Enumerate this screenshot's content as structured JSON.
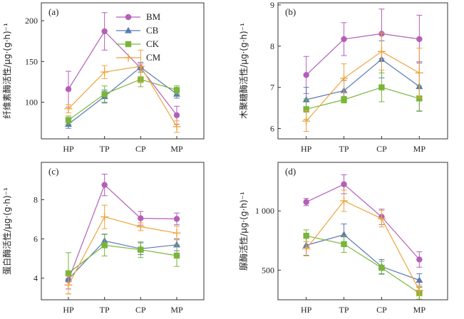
{
  "categories": [
    "HP",
    "TP",
    "CP",
    "MP"
  ],
  "legend": [
    {
      "name": "BM",
      "color": "#b35fb8",
      "marker": "circle"
    },
    {
      "name": "CB",
      "color": "#5b79b4",
      "marker": "triangle"
    },
    {
      "name": "CK",
      "color": "#7ab53a",
      "marker": "square"
    },
    {
      "name": "CM",
      "color": "#f0a33c",
      "marker": "plus"
    }
  ],
  "chart_data": [
    {
      "type": "line",
      "panel_label": "(a)",
      "ylabel": "纤维素酶活性/μg·(g·h)⁻¹",
      "categories": [
        "HP",
        "TP",
        "CP",
        "MP"
      ],
      "ylim": [
        55,
        222
      ],
      "yticks": [
        100,
        150,
        200
      ],
      "legend_position": "top-center",
      "series": [
        {
          "name": "BM",
          "values": [
            116,
            187,
            142,
            84
          ],
          "errors": [
            22,
            23,
            5,
            11
          ]
        },
        {
          "name": "CB",
          "values": [
            73,
            107,
            143,
            110
          ],
          "errors": [
            5,
            8,
            6,
            5
          ]
        },
        {
          "name": "CK",
          "values": [
            78,
            110,
            128,
            115
          ],
          "errors": [
            5,
            10,
            9,
            5
          ]
        },
        {
          "name": "CM",
          "values": [
            92,
            137,
            144,
            70
          ],
          "errors": [
            5,
            8,
            20,
            7
          ]
        }
      ]
    },
    {
      "type": "line",
      "panel_label": "(b)",
      "ylabel": "木聚糖酶活性/μg·(g·h)⁻¹",
      "categories": [
        "HP",
        "TP",
        "CP",
        "MP"
      ],
      "ylim": [
        5.75,
        9.05
      ],
      "yticks": [
        6,
        7,
        8,
        9
      ],
      "series": [
        {
          "name": "BM",
          "values": [
            7.3,
            8.17,
            8.3,
            8.17
          ],
          "errors": [
            0.45,
            0.4,
            0.6,
            0.58
          ]
        },
        {
          "name": "CB",
          "values": [
            6.7,
            6.92,
            7.68,
            7.02
          ],
          "errors": [
            0.3,
            0.25,
            0.45,
            0.6
          ]
        },
        {
          "name": "CK",
          "values": [
            6.47,
            6.7,
            7.0,
            6.73
          ],
          "errors": [
            0.25,
            0.08,
            0.35,
            0.3
          ]
        },
        {
          "name": "CM",
          "values": [
            6.18,
            7.22,
            7.87,
            7.35
          ],
          "errors": [
            0.25,
            0.35,
            0.45,
            0.6
          ]
        }
      ]
    },
    {
      "type": "line",
      "panel_label": "(c)",
      "ylabel": "蛋白酶活性/μg·(g·h)⁻¹",
      "categories": [
        "HP",
        "TP",
        "CP",
        "MP"
      ],
      "ylim": [
        2.9,
        9.9
      ],
      "yticks": [
        4,
        6,
        8
      ],
      "series": [
        {
          "name": "BM",
          "values": [
            3.9,
            8.75,
            7.05,
            7.02
          ],
          "errors": [
            0.45,
            0.55,
            0.35,
            0.3
          ]
        },
        {
          "name": "CB",
          "values": [
            3.95,
            5.9,
            5.5,
            5.7
          ],
          "errors": [
            0.3,
            0.35,
            0.3,
            0.3
          ]
        },
        {
          "name": "CK",
          "values": [
            4.25,
            5.68,
            5.45,
            5.15
          ],
          "errors": [
            1.05,
            0.55,
            0.4,
            0.55
          ]
        },
        {
          "name": "CM",
          "values": [
            3.65,
            7.12,
            6.62,
            6.3
          ],
          "errors": [
            0.45,
            0.6,
            0.2,
            0.35
          ]
        }
      ]
    },
    {
      "type": "line",
      "panel_label": "(d)",
      "ylabel": "脲酶活性/μg·(g·h)⁻¹",
      "categories": [
        "HP",
        "TP",
        "CP",
        "MP"
      ],
      "ylim": [
        250,
        1410
      ],
      "yticks": [
        500,
        1000
      ],
      "ytick_labels": [
        "500",
        "1 000"
      ],
      "series": [
        {
          "name": "BM",
          "values": [
            1075,
            1225,
            950,
            590
          ],
          "errors": [
            30,
            80,
            65,
            65
          ]
        },
        {
          "name": "CB",
          "values": [
            710,
            800,
            530,
            415
          ],
          "errors": [
            85,
            90,
            60,
            55
          ]
        },
        {
          "name": "CK",
          "values": [
            790,
            720,
            520,
            305
          ],
          "errors": [
            50,
            70,
            55,
            50
          ]
        },
        {
          "name": "CM",
          "values": [
            680,
            1085,
            935,
            330
          ],
          "errors": [
            60,
            90,
            70,
            45
          ]
        }
      ]
    }
  ]
}
